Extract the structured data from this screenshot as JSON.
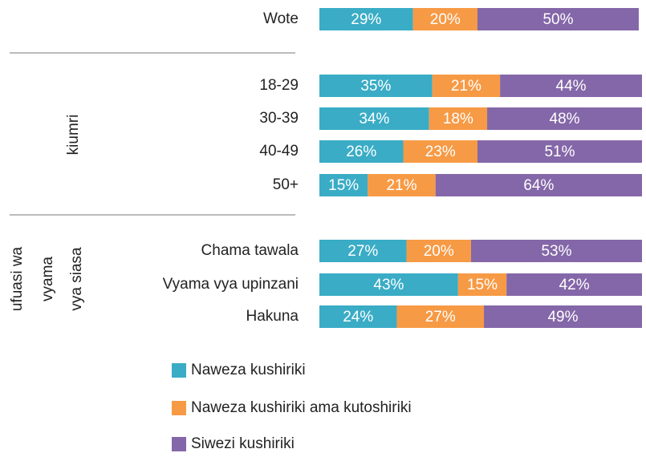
{
  "chart_data": {
    "type": "bar",
    "orientation": "horizontal",
    "stacked": true,
    "categories": [
      "Wote",
      "18-29",
      "30-39",
      "40-49",
      "50+",
      "Chama tawala",
      "Vyama vya upinzani",
      "Hakuna"
    ],
    "groups": [
      {
        "label": [
          "kiumri"
        ]
      },
      {
        "label": [
          "ufuasi wa",
          "vyama",
          "vya siasa"
        ]
      }
    ],
    "series": [
      {
        "name": "Naweza kushiriki",
        "color": "#3aacc6",
        "values": [
          29,
          35,
          34,
          26,
          15,
          27,
          43,
          24
        ],
        "value_labels": [
          "29%",
          "35%",
          "34%",
          "26%",
          "15%",
          "27%",
          "43%",
          "24%"
        ]
      },
      {
        "name": "Naweza kushiriki ama kutoshiriki",
        "color": "#f79a45",
        "values": [
          20,
          21,
          18,
          23,
          21,
          20,
          15,
          27
        ],
        "value_labels": [
          "20%",
          "21%",
          "18%",
          "23%",
          "21%",
          "20%",
          "15%",
          "27%"
        ]
      },
      {
        "name": "Siwezi kushiriki",
        "color": "#8467a8",
        "values": [
          50,
          44,
          48,
          51,
          64,
          53,
          42,
          49
        ],
        "value_labels": [
          "50%",
          "44%",
          "48%",
          "51%",
          "64%",
          "53%",
          "42%",
          "49%"
        ]
      }
    ]
  }
}
